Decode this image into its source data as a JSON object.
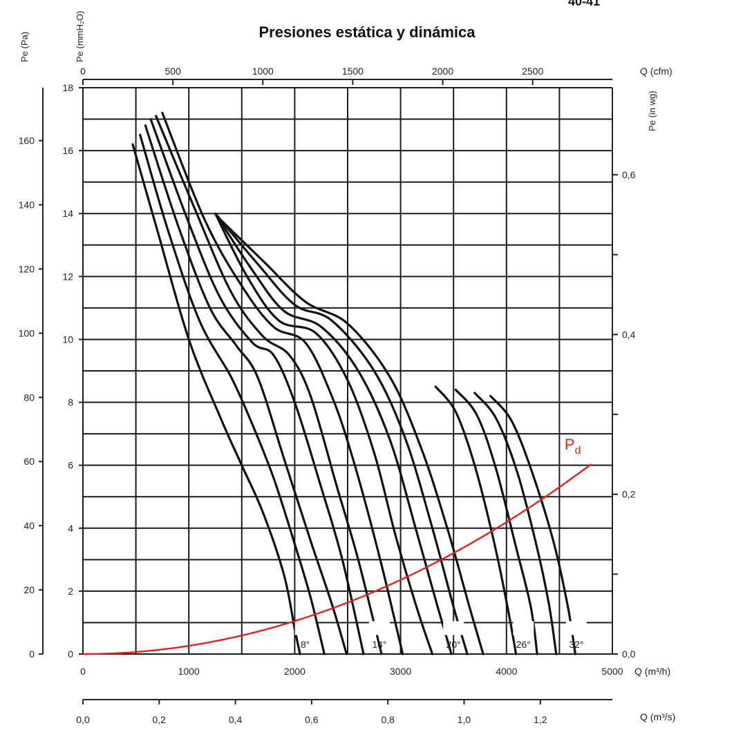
{
  "page_number": "40-41",
  "chart_data": {
    "type": "line",
    "title": "Presiones estática y dinámica",
    "axes": {
      "x_main": {
        "label": "Q (m³/h)",
        "range": [
          0,
          5000
        ],
        "ticks": [
          0,
          1000,
          2000,
          3000,
          4000,
          5000
        ],
        "tick_labels": [
          "0",
          "1000",
          "2000",
          "3000",
          "4000",
          "5000"
        ]
      },
      "x_cfm": {
        "label": "Q (cfm)",
        "range": [
          0,
          2943
        ],
        "ticks": [
          0,
          500,
          1000,
          1500,
          2000,
          2500
        ],
        "tick_labels": [
          "0",
          "500",
          "1000",
          "1500",
          "2000",
          "2500"
        ]
      },
      "x_m3s": {
        "label": "Q (m³/s)",
        "range": [
          0,
          1.389
        ],
        "ticks": [
          0,
          0.2,
          0.4,
          0.6,
          0.8,
          1.0,
          1.2
        ],
        "tick_labels": [
          "0,0",
          "0,2",
          "0,4",
          "0,6",
          "0,8",
          "1,0",
          "1,2"
        ]
      },
      "y_mm": {
        "label": "Pe (mmH₂O)",
        "range": [
          0,
          18
        ],
        "ticks": [
          0,
          2,
          4,
          6,
          8,
          10,
          12,
          14,
          16,
          18
        ],
        "tick_labels": [
          "0",
          "2",
          "4",
          "6",
          "8",
          "10",
          "12",
          "14",
          "16",
          "18"
        ]
      },
      "y_pa": {
        "label": "Pe (Pa)",
        "range": [
          0,
          176.5
        ],
        "ticks": [
          0,
          20,
          40,
          60,
          80,
          100,
          120,
          140,
          160
        ],
        "tick_labels": [
          "0",
          "20",
          "40",
          "60",
          "80",
          "100",
          "120",
          "140",
          "160"
        ]
      },
      "y_inwg": {
        "label": "Pe (in wg)",
        "range": [
          0,
          0.709
        ],
        "ticks": [
          0,
          0.1,
          0.2,
          0.3,
          0.4,
          0.5,
          0.6
        ],
        "tick_labels": [
          "0,0",
          "",
          "0,2",
          "",
          "0,4",
          "",
          "0,6"
        ]
      }
    },
    "grid": true,
    "grid_x_step": 500,
    "grid_y_step": 1,
    "series": [
      {
        "label": "8°",
        "label_x": 2100,
        "points": [
          [
            470,
            16.2
          ],
          [
            700,
            13.5
          ],
          [
            1000,
            10.0
          ],
          [
            1300,
            7.5
          ],
          [
            1500,
            6.0
          ],
          [
            1700,
            4.5
          ],
          [
            1900,
            2.5
          ],
          [
            2000,
            0.8
          ],
          [
            2050,
            0
          ]
        ]
      },
      {
        "points": [
          [
            540,
            16.5
          ],
          [
            800,
            13.5
          ],
          [
            1100,
            10.6
          ],
          [
            1400,
            8.8
          ],
          [
            1600,
            7.3
          ],
          [
            1800,
            5.6
          ],
          [
            2000,
            3.5
          ],
          [
            2150,
            1.8
          ],
          [
            2280,
            0
          ]
        ]
      },
      {
        "points": [
          [
            590,
            16.8
          ],
          [
            900,
            13.6
          ],
          [
            1200,
            11.0
          ],
          [
            1450,
            9.8
          ],
          [
            1650,
            8.8
          ],
          [
            1900,
            6.2
          ],
          [
            2150,
            3.6
          ],
          [
            2350,
            1.6
          ],
          [
            2490,
            0
          ]
        ]
      },
      {
        "points": [
          [
            640,
            17.0
          ],
          [
            1000,
            13.7
          ],
          [
            1300,
            11.3
          ],
          [
            1600,
            9.9
          ],
          [
            1800,
            9.5
          ],
          [
            2000,
            8.0
          ],
          [
            2250,
            5.3
          ],
          [
            2450,
            3.0
          ],
          [
            2650,
            0
          ]
        ]
      },
      {
        "label": "14°",
        "label_x": 2800,
        "points": [
          [
            690,
            17.1
          ],
          [
            1050,
            14.2
          ],
          [
            1400,
            11.5
          ],
          [
            1700,
            10.1
          ],
          [
            1950,
            9.5
          ],
          [
            2150,
            8.2
          ],
          [
            2400,
            5.3
          ],
          [
            2600,
            3.0
          ],
          [
            2820,
            0
          ]
        ]
      },
      {
        "points": [
          [
            750,
            17.2
          ],
          [
            1150,
            13.8
          ],
          [
            1500,
            11.7
          ],
          [
            1800,
            10.4
          ],
          [
            2100,
            9.9
          ],
          [
            2350,
            8.2
          ],
          [
            2550,
            6.2
          ],
          [
            2800,
            3.1
          ],
          [
            3020,
            0
          ]
        ]
      },
      {
        "points": [
          [
            1250,
            14.0
          ],
          [
            1550,
            12.0
          ],
          [
            1850,
            10.6
          ],
          [
            2200,
            10.2
          ],
          [
            2500,
            8.7
          ],
          [
            2750,
            6.4
          ],
          [
            2950,
            3.8
          ],
          [
            3150,
            1.5
          ],
          [
            3300,
            0
          ]
        ]
      },
      {
        "points": [
          [
            1250,
            14.0
          ],
          [
            1600,
            12.2
          ],
          [
            1900,
            10.9
          ],
          [
            2250,
            10.4
          ],
          [
            2600,
            9.0
          ],
          [
            2900,
            6.8
          ],
          [
            3150,
            3.9
          ],
          [
            3350,
            1.5
          ],
          [
            3480,
            0
          ]
        ]
      },
      {
        "label": "20°",
        "label_x": 3500,
        "points": [
          [
            1250,
            14.0
          ],
          [
            1650,
            12.4
          ],
          [
            2000,
            11.1
          ],
          [
            2350,
            10.6
          ],
          [
            2750,
            9.0
          ],
          [
            3050,
            6.8
          ],
          [
            3300,
            4.0
          ],
          [
            3500,
            1.5
          ],
          [
            3630,
            0
          ]
        ]
      },
      {
        "points": [
          [
            1300,
            13.8
          ],
          [
            1700,
            12.5
          ],
          [
            2100,
            11.2
          ],
          [
            2500,
            10.5
          ],
          [
            2900,
            8.8
          ],
          [
            3200,
            6.5
          ],
          [
            3450,
            3.9
          ],
          [
            3650,
            1.5
          ],
          [
            3780,
            0
          ]
        ]
      },
      {
        "points": [
          [
            3330,
            8.5
          ],
          [
            3520,
            7.7
          ],
          [
            3700,
            6.0
          ],
          [
            3880,
            3.6
          ],
          [
            4010,
            1.5
          ],
          [
            4090,
            0
          ]
        ]
      },
      {
        "label": "26°",
        "label_x": 4160,
        "points": [
          [
            3520,
            8.4
          ],
          [
            3720,
            7.6
          ],
          [
            3900,
            5.9
          ],
          [
            4090,
            3.4
          ],
          [
            4230,
            1.5
          ],
          [
            4290,
            0
          ]
        ]
      },
      {
        "points": [
          [
            3700,
            8.3
          ],
          [
            3900,
            7.5
          ],
          [
            4100,
            5.8
          ],
          [
            4280,
            3.5
          ],
          [
            4400,
            1.6
          ],
          [
            4470,
            0
          ]
        ]
      },
      {
        "label": "32°",
        "label_x": 4660,
        "points": [
          [
            3850,
            8.2
          ],
          [
            4050,
            7.4
          ],
          [
            4250,
            5.7
          ],
          [
            4450,
            3.5
          ],
          [
            4580,
            1.5
          ],
          [
            4650,
            0
          ]
        ]
      }
    ],
    "pd_curve": {
      "name": "Pd",
      "color": "#e8201c",
      "coefficient": 2.62e-07,
      "x_end": 4810
    },
    "colors": {
      "curves": "#111111",
      "grid": "#1a1a1a",
      "pd": "#e8201c"
    }
  }
}
